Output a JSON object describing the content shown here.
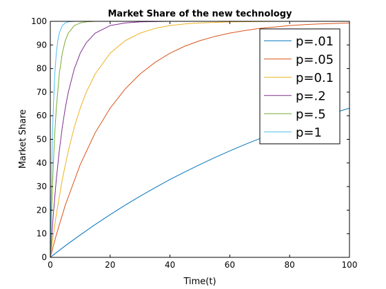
{
  "chart_data": {
    "type": "line",
    "title": "Market Share of the new technology",
    "xlabel": "Time(t)",
    "ylabel": "Market Share",
    "xlim": [
      0,
      100
    ],
    "ylim": [
      0,
      100
    ],
    "xticks": [
      0,
      20,
      40,
      60,
      80,
      100
    ],
    "yticks": [
      0,
      10,
      20,
      30,
      40,
      50,
      60,
      70,
      80,
      90,
      100
    ],
    "grid": false,
    "legend_position": "top-right",
    "series": [
      {
        "name": "p=.01",
        "color": "#0072bd",
        "x": [
          0,
          1,
          5,
          10,
          15,
          20,
          25,
          30,
          35,
          40,
          45,
          50,
          55,
          60,
          65,
          70,
          75,
          80,
          85,
          90,
          95,
          100
        ],
        "y": [
          0,
          1.0,
          4.9,
          9.5,
          13.9,
          18.1,
          22.1,
          25.9,
          29.5,
          33.0,
          36.2,
          39.3,
          42.3,
          45.1,
          47.8,
          50.3,
          52.8,
          55.1,
          57.3,
          59.3,
          61.3,
          63.2
        ]
      },
      {
        "name": "p=.05",
        "color": "#d95319",
        "x": [
          0,
          2,
          5,
          10,
          15,
          20,
          25,
          30,
          35,
          40,
          45,
          50,
          55,
          60,
          65,
          70,
          75,
          80,
          85,
          90,
          95,
          100
        ],
        "y": [
          0,
          9.5,
          22.1,
          39.3,
          52.8,
          63.2,
          71.3,
          77.7,
          82.6,
          86.5,
          89.5,
          91.8,
          93.6,
          95.0,
          96.1,
          97.0,
          97.6,
          98.2,
          98.6,
          98.9,
          99.1,
          99.3
        ]
      },
      {
        "name": "p=0.1",
        "color": "#edb120",
        "x": [
          0,
          1,
          2,
          4,
          6,
          8,
          10,
          12,
          15,
          20,
          25,
          30,
          35,
          40,
          45,
          50,
          60,
          70,
          80,
          90,
          100
        ],
        "y": [
          0,
          9.5,
          18.1,
          33.0,
          45.1,
          55.1,
          63.2,
          69.9,
          77.7,
          86.5,
          91.8,
          95.0,
          97.0,
          98.2,
          98.9,
          99.3,
          99.8,
          99.9,
          100,
          100,
          100
        ]
      },
      {
        "name": "p=.2",
        "color": "#7e2f8e",
        "x": [
          0,
          0.5,
          1,
          2,
          3,
          4,
          5,
          6,
          8,
          10,
          12,
          15,
          20,
          25,
          30,
          40,
          50,
          60
        ],
        "y": [
          0,
          9.5,
          18.1,
          33.0,
          45.1,
          55.1,
          63.2,
          69.9,
          79.8,
          86.5,
          90.9,
          95.0,
          98.2,
          99.3,
          99.8,
          100,
          100,
          100
        ]
      },
      {
        "name": "p=.5",
        "color": "#77ac30",
        "x": [
          0,
          0.25,
          0.5,
          1,
          1.5,
          2,
          3,
          4,
          5,
          6,
          8,
          10,
          12,
          15,
          20,
          40,
          60,
          80,
          100
        ],
        "y": [
          0,
          11.8,
          22.1,
          39.3,
          52.8,
          63.2,
          77.7,
          86.5,
          91.8,
          95.0,
          98.2,
          99.3,
          99.8,
          100,
          100,
          100,
          100,
          100,
          100
        ]
      },
      {
        "name": "p=1",
        "color": "#4dbeee",
        "x": [
          0,
          0.1,
          0.25,
          0.5,
          0.75,
          1,
          1.5,
          2,
          2.5,
          3,
          4,
          5,
          6,
          8,
          10,
          15
        ],
        "y": [
          0,
          9.5,
          22.1,
          39.3,
          52.8,
          63.2,
          77.7,
          86.5,
          91.8,
          95.0,
          98.2,
          99.3,
          99.8,
          100,
          100,
          100
        ]
      }
    ]
  }
}
